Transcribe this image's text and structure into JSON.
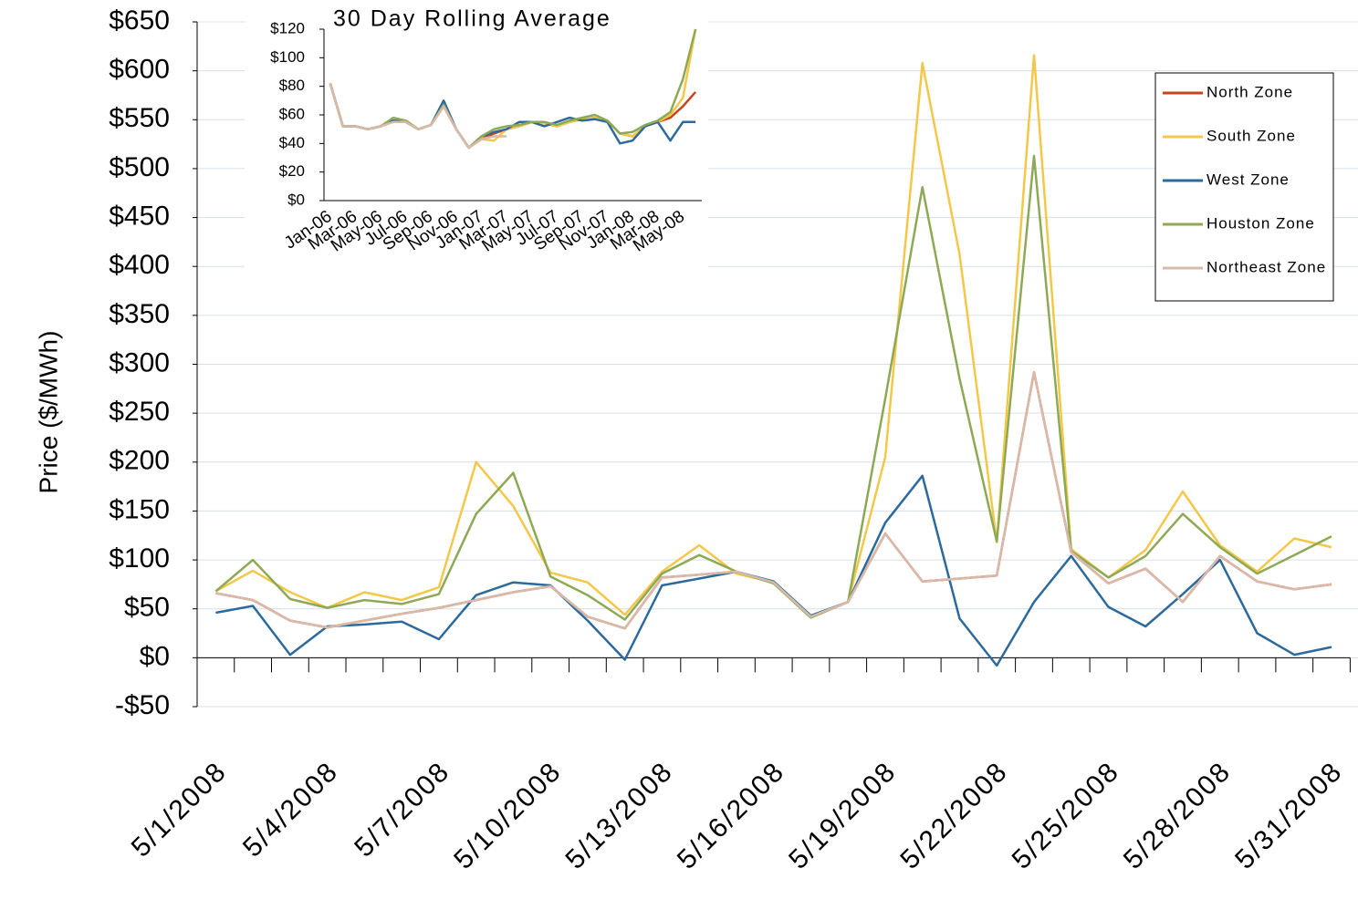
{
  "chart_data": [
    {
      "type": "line",
      "y_label": "Price ($/MWh)",
      "categories": [
        "5/1/2008",
        null,
        null,
        "5/4/2008",
        null,
        null,
        "5/7/2008",
        null,
        null,
        "5/10/2008",
        null,
        null,
        "5/13/2008",
        null,
        null,
        "5/16/2008",
        null,
        null,
        "5/19/2008",
        null,
        null,
        "5/22/2008",
        null,
        null,
        "5/25/2008",
        null,
        null,
        "5/28/2008",
        null,
        null,
        "5/31/2008"
      ],
      "ylim": [
        -50,
        650
      ],
      "yticks": [
        {
          "value": -50,
          "label": "-$50"
        },
        {
          "value": 0,
          "label": "$0"
        },
        {
          "value": 50,
          "label": "$50"
        },
        {
          "value": 100,
          "label": "$100"
        },
        {
          "value": 150,
          "label": "$150"
        },
        {
          "value": 200,
          "label": "$200"
        },
        {
          "value": 250,
          "label": "$250"
        },
        {
          "value": 300,
          "label": "$300"
        },
        {
          "value": 350,
          "label": "$350"
        },
        {
          "value": 400,
          "label": "$400"
        },
        {
          "value": 450,
          "label": "$450"
        },
        {
          "value": 500,
          "label": "$500"
        },
        {
          "value": 550,
          "label": "$550"
        },
        {
          "value": 600,
          "label": "$600"
        },
        {
          "value": 650,
          "label": "$650"
        }
      ],
      "grid": true,
      "legend": "right",
      "series": [
        {
          "name": "North Zone",
          "color": "#c8431c",
          "values": [
            66,
            59,
            38,
            31,
            38,
            45,
            51,
            59,
            67,
            73,
            42,
            30,
            82,
            85,
            88,
            77,
            42,
            57,
            127,
            78,
            81,
            84,
            292,
            108,
            76,
            91,
            57,
            104,
            78,
            70,
            75
          ]
        },
        {
          "name": "South Zone",
          "color": "#f5c748",
          "values": [
            68,
            89,
            67,
            51,
            67,
            59,
            72,
            200,
            155,
            87,
            77,
            44,
            88,
            115,
            86,
            77,
            42,
            57,
            205,
            608,
            412,
            118,
            616,
            111,
            82,
            110,
            170,
            115,
            88,
            122,
            113
          ]
        },
        {
          "name": "West Zone",
          "color": "#2d6a9c",
          "values": [
            46,
            53,
            3,
            32,
            34,
            37,
            19,
            64,
            77,
            74,
            38,
            -2,
            74,
            81,
            88,
            78,
            43,
            57,
            138,
            186,
            40,
            -8,
            57,
            104,
            52,
            32,
            65,
            100,
            25,
            3,
            11
          ]
        },
        {
          "name": "Houston Zone",
          "color": "#8ea955",
          "values": [
            68,
            100,
            60,
            51,
            59,
            55,
            65,
            147,
            189,
            83,
            64,
            39,
            86,
            105,
            88,
            76,
            41,
            57,
            265,
            481,
            285,
            119,
            513,
            109,
            82,
            104,
            147,
            113,
            86,
            105,
            124
          ]
        },
        {
          "name": "Northeast Zone",
          "color": "#d9b9aa",
          "values": [
            66,
            59,
            38,
            31,
            38,
            45,
            51,
            59,
            67,
            73,
            42,
            30,
            82,
            85,
            88,
            77,
            42,
            57,
            127,
            78,
            81,
            84,
            292,
            108,
            76,
            91,
            57,
            104,
            78,
            70,
            75
          ]
        }
      ]
    },
    {
      "type": "line",
      "title": "30 Day Rolling Average",
      "categories": [
        "Jan-06",
        null,
        "Mar-06",
        null,
        "May-06",
        null,
        "Jul-06",
        null,
        "Sep-06",
        null,
        "Nov-06",
        null,
        "Jan-07",
        null,
        "Mar-07",
        null,
        "May-07",
        null,
        "Jul-07",
        null,
        "Sep-07",
        null,
        "Nov-07",
        null,
        "Jan-08",
        null,
        "Mar-08",
        null,
        "May-08",
        null
      ],
      "ylim": [
        0,
        120
      ],
      "yticks": [
        {
          "value": 0,
          "label": "$0"
        },
        {
          "value": 20,
          "label": "$20"
        },
        {
          "value": 40,
          "label": "$40"
        },
        {
          "value": 60,
          "label": "$60"
        },
        {
          "value": 80,
          "label": "$80"
        },
        {
          "value": 100,
          "label": "$100"
        },
        {
          "value": 120,
          "label": "$120"
        }
      ],
      "grid": false,
      "series": [
        {
          "name": "North Zone",
          "color": "#c8431c",
          "values": [
            82,
            52,
            52,
            50,
            52,
            56,
            55,
            50,
            53,
            66,
            50,
            37,
            43,
            47,
            50,
            52,
            55,
            54,
            52,
            55,
            57,
            58,
            56,
            47,
            45,
            52,
            55,
            58,
            66,
            76
          ]
        },
        {
          "name": "South Zone",
          "color": "#f5c748",
          "values": [
            82,
            52,
            52,
            50,
            52,
            56,
            55,
            50,
            53,
            66,
            50,
            37,
            43,
            42,
            50,
            52,
            55,
            54,
            52,
            55,
            57,
            58,
            56,
            47,
            45,
            52,
            55,
            60,
            72,
            120
          ]
        },
        {
          "name": "West Zone",
          "color": "#2d6a9c",
          "values": [
            82,
            52,
            52,
            50,
            52,
            56,
            55,
            50,
            53,
            70,
            50,
            37,
            45,
            48,
            50,
            55,
            55,
            52,
            55,
            58,
            56,
            57,
            55,
            40,
            42,
            52,
            55,
            42,
            55,
            55
          ]
        },
        {
          "name": "Houston Zone",
          "color": "#8ea955",
          "values": [
            82,
            52,
            52,
            50,
            52,
            58,
            56,
            50,
            53,
            67,
            50,
            37,
            45,
            50,
            52,
            53,
            55,
            55,
            53,
            56,
            58,
            60,
            56,
            47,
            48,
            53,
            56,
            62,
            85,
            120
          ]
        },
        {
          "name": "Northeast Zone",
          "color": "#d9b9aa",
          "values": [
            82,
            52,
            52,
            50,
            52,
            55,
            55,
            50,
            53,
            66,
            50,
            37,
            43,
            45,
            45,
            null,
            null,
            null,
            null,
            null,
            null,
            null,
            null,
            null,
            null,
            null,
            null,
            null,
            null,
            null
          ]
        }
      ]
    }
  ]
}
